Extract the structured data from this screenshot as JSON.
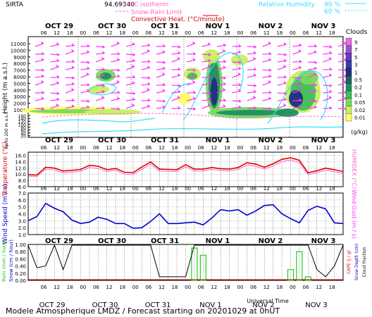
{
  "header": {
    "station": "SIRTA",
    "coords": "94.69340",
    "legend_isotherm": "0°C isotherm",
    "legend_snow_rain": "Snow-Rain Limit",
    "legend_convective": "Convective Heat. (°C/minute)",
    "legend_rh": "Relative Humidity",
    "legend_rh_90": "90 %",
    "legend_rh_60": "60 %"
  },
  "footer": {
    "title": "Modele Atmospherique LMDZ / Forecast starting on 20201029 at 0hUT",
    "xlabel": "Universal Time"
  },
  "days": [
    "OCT 29",
    "OCT 30",
    "OCT 31",
    "NOV 1",
    "NOV 2",
    "NOV 3"
  ],
  "hour_ticks": [
    "06",
    "12",
    "18",
    "00",
    "06",
    "12",
    "18",
    "00",
    "06",
    "12",
    "18",
    "00",
    "06",
    "12",
    "18",
    "00",
    "06",
    "12",
    "18",
    "00",
    "06",
    "12",
    "18"
  ],
  "colors": {
    "cloud_scale": [
      "#ffff66",
      "#c8f060",
      "#79d860",
      "#3fbf5a",
      "#1e9060",
      "#206060",
      "#203080",
      "#3040b0",
      "#6040c0",
      "#a050d0",
      "#e070e0"
    ],
    "wind_barb": "#ff33ff",
    "rh_contour": "#33ddff",
    "temperature": "#dd0000",
    "humidex": "#ff66cc",
    "wind_speed": "#0000cc",
    "rain": "#22cc22",
    "cloud_fraction": "#000000"
  },
  "chart_data": [
    {
      "type": "heatmap",
      "title": "Clouds",
      "ylabel": "Height (m a.s.l.)",
      "ylabel2": "Up to 200 m a.s.l.",
      "ylim": [
        0,
        11000
      ],
      "yticks": [
        "11000",
        "10000",
        "9000",
        "8000",
        "7000",
        "6000",
        "5000",
        "4000",
        "3000",
        "2000",
        "1000",
        "160",
        "140",
        "120",
        "100",
        "80",
        "60",
        "40",
        "20"
      ],
      "colorbar_label": "(g/kg)",
      "colorbar_ticks": [
        "9",
        "7",
        "5",
        "3",
        "1",
        "0.5",
        "0.2",
        "0.1",
        "0.05",
        "0.02",
        "0.01"
      ]
    },
    {
      "type": "line",
      "ylabel": "Temperature (°C)",
      "ylabel2": "HUMIDEX (°C)",
      "ylim": [
        6.0,
        17.0
      ],
      "yticks": [
        "16.0",
        "14.0",
        "12.0",
        "10.0",
        "8.0",
        "6.0"
      ],
      "series": [
        {
          "name": "Temperature",
          "values": [
            9.8,
            9.7,
            12.2,
            11.9,
            11.0,
            11.2,
            11.5,
            12.8,
            12.5,
            11.4,
            11.8,
            10.6,
            10.5,
            12.3,
            13.9,
            11.6,
            11.5,
            11.4,
            13.0,
            11.6,
            11.6,
            12.1,
            11.7,
            11.6,
            12.1,
            13.6,
            13.2,
            12.2,
            13.3,
            14.7,
            15.2,
            14.4,
            10.4,
            11.1,
            11.9,
            11.4,
            10.8
          ]
        },
        {
          "name": "HUMIDEX",
          "values": [
            9.3,
            9.2,
            11.6,
            11.3,
            10.4,
            10.6,
            10.9,
            12.1,
            11.8,
            10.8,
            11.2,
            10.0,
            9.9,
            11.6,
            13.2,
            11.0,
            10.9,
            10.8,
            12.3,
            11.0,
            11.0,
            11.5,
            11.1,
            11.0,
            11.5,
            12.9,
            12.5,
            11.6,
            12.6,
            14.0,
            14.5,
            13.7,
            9.8,
            10.5,
            11.3,
            10.8,
            10.2
          ]
        }
      ]
    },
    {
      "type": "line",
      "ylabel": "Wind Speed (m / s)",
      "ylabel2": "Wind Gust (m / s)",
      "ylim": [
        1.0,
        7.0
      ],
      "yticks": [
        "7.0",
        "6.0",
        "5.0",
        "4.0",
        "3.0",
        "2.0",
        "1.0"
      ],
      "series": [
        {
          "name": "Wind Speed",
          "values": [
            3.0,
            3.6,
            5.5,
            4.8,
            4.3,
            3.1,
            2.6,
            2.8,
            3.5,
            3.2,
            2.6,
            2.6,
            1.9,
            2.0,
            2.9,
            4.0,
            2.6,
            2.6,
            2.7,
            2.8,
            2.4,
            3.4,
            4.6,
            4.4,
            4.6,
            3.8,
            4.4,
            5.2,
            5.3,
            4.0,
            3.3,
            2.7,
            4.5,
            5.1,
            4.7,
            2.7,
            2.6
          ]
        }
      ]
    },
    {
      "type": "bar",
      "ylabel": "Rain (mm / hour)",
      "ylabel_snow": "Snow (cm / hour)",
      "ylabel_cape": "CAPE (J / g)",
      "ylabel_snowdepth": "Snow Depth (cm)",
      "ylabel_cloud": "Cloud Fraction",
      "ylim": [
        0.0,
        1.0
      ],
      "yticks": [
        "1.00",
        "0.80",
        "0.60",
        "0.40",
        "0.20",
        "0.00"
      ],
      "series": [
        {
          "name": "Cloud Fraction",
          "values": [
            0.98,
            0.35,
            0.4,
            0.98,
            0.3,
            0.98,
            0.98,
            0.98,
            0.98,
            0.98,
            0.98,
            0.98,
            0.98,
            0.98,
            0.98,
            0.1,
            0.1,
            0.1,
            0.1,
            0.98,
            0.98,
            0.98,
            0.98,
            0.98,
            0.98,
            0.98,
            0.98,
            0.98,
            0.98,
            0.98,
            0.98,
            0.98,
            0.98,
            0.3,
            0.1,
            0.4,
            0.98
          ]
        },
        {
          "name": "Rain",
          "values": [
            0,
            0,
            0,
            0,
            0,
            0,
            0,
            0,
            0,
            0,
            0,
            0,
            0,
            0,
            0,
            0,
            0,
            0,
            0,
            0.9,
            0.7,
            0,
            0,
            0,
            0,
            0,
            0,
            0,
            0,
            0,
            0.3,
            0.8,
            0.1,
            0,
            0,
            0,
            0
          ]
        }
      ]
    }
  ]
}
